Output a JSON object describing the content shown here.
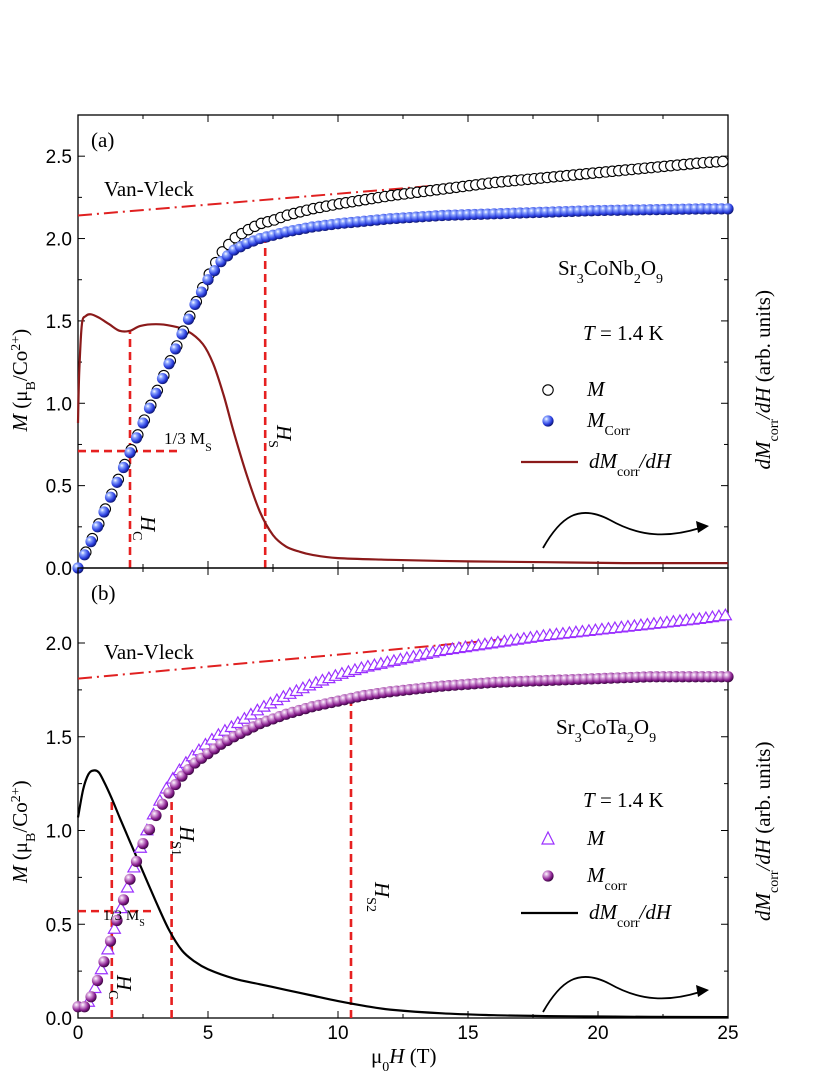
{
  "chart_data": [
    {
      "panel_label": "(a)",
      "type": "scatter",
      "compound": [
        "Sr",
        "3",
        "CoNb",
        "2",
        "O",
        "9"
      ],
      "temperature": [
        "T",
        " = 1.4 K"
      ],
      "ylabel_left": [
        "M",
        " (μ",
        "B",
        "/Co",
        "2+",
        ")"
      ],
      "ylabel_right": [
        "dM",
        "corr",
        "/dH",
        " (arb. units)"
      ],
      "xlim": [
        0,
        25
      ],
      "ylim": [
        0,
        2.75
      ],
      "yticks": [
        0.0,
        0.5,
        1.0,
        1.5,
        2.0,
        2.5
      ],
      "yticklabels": [
        "0.0",
        "0.5",
        "1.0",
        "1.5",
        "2.0",
        "2.5"
      ],
      "legend": [
        {
          "label": [
            "M",
            ""
          ],
          "marker": "open-circle",
          "color": "#000000"
        },
        {
          "label": [
            "M",
            "Corr"
          ],
          "marker": "blue-sphere",
          "color": "#2b3fe0"
        },
        {
          "label": [
            "dM",
            "corr",
            "/dH"
          ],
          "marker": "line",
          "color": "#8b1a1a"
        }
      ],
      "annotations": {
        "van_vleck": "Van-Vleck",
        "one_third": "1/3 M",
        "one_third_sub": "S",
        "hc": "H",
        "hc_sub": "C",
        "hs": "H",
        "hs_sub": "S"
      },
      "van_vleck_line": {
        "x": [
          0,
          25
        ],
        "y": [
          2.14,
          2.47
        ],
        "color": "#e02020"
      },
      "critical_fields": {
        "Hc": 2.0,
        "Hs": 7.2,
        "one_third_Ms": 0.71
      },
      "series": [
        {
          "name": "M",
          "x": [
            0,
            0.5,
            1,
            1.5,
            2,
            2.5,
            3,
            3.5,
            4,
            4.5,
            5,
            5.5,
            6,
            6.5,
            7,
            7.5,
            8,
            9,
            10,
            12,
            14,
            16,
            18,
            20,
            22,
            24,
            25
          ],
          "y": [
            0.0,
            0.16,
            0.34,
            0.52,
            0.7,
            0.88,
            1.06,
            1.24,
            1.42,
            1.6,
            1.77,
            1.91,
            2.0,
            2.05,
            2.09,
            2.11,
            2.14,
            2.18,
            2.21,
            2.26,
            2.3,
            2.34,
            2.37,
            2.4,
            2.43,
            2.46,
            2.47
          ]
        },
        {
          "name": "M_Corr",
          "x": [
            0,
            0.5,
            1,
            1.5,
            2,
            2.5,
            3,
            3.5,
            4,
            4.5,
            5,
            5.5,
            6,
            6.5,
            7,
            7.5,
            8,
            9,
            10,
            12,
            14,
            16,
            18,
            20,
            22,
            24,
            25
          ],
          "y": [
            0.0,
            0.16,
            0.34,
            0.52,
            0.7,
            0.88,
            1.06,
            1.24,
            1.42,
            1.6,
            1.75,
            1.86,
            1.93,
            1.97,
            2.0,
            2.02,
            2.04,
            2.07,
            2.09,
            2.12,
            2.14,
            2.15,
            2.16,
            2.17,
            2.175,
            2.18,
            2.18
          ]
        },
        {
          "name": "dM_corr/dH",
          "x": [
            0,
            0.05,
            0.15,
            0.3,
            0.5,
            0.8,
            1.2,
            1.6,
            2.0,
            2.4,
            3.0,
            3.6,
            4.2,
            4.8,
            5.2,
            5.6,
            6.0,
            6.5,
            7.0,
            7.5,
            8.0,
            8.5,
            9,
            10,
            12,
            15,
            18,
            21,
            25
          ],
          "y": [
            0.88,
            1.2,
            1.48,
            1.53,
            1.54,
            1.52,
            1.48,
            1.44,
            1.44,
            1.47,
            1.48,
            1.47,
            1.44,
            1.36,
            1.24,
            1.05,
            0.82,
            0.56,
            0.34,
            0.2,
            0.13,
            0.1,
            0.08,
            0.06,
            0.05,
            0.04,
            0.035,
            0.03,
            0.03
          ]
        }
      ]
    },
    {
      "panel_label": "(b)",
      "type": "scatter",
      "compound": [
        "Sr",
        "3",
        "CoTa",
        "2",
        "O",
        "9"
      ],
      "temperature": [
        "T",
        " = 1.4 K"
      ],
      "ylabel_left": [
        "M",
        " (μ",
        "B",
        "/Co",
        "2+",
        ")"
      ],
      "ylabel_right": [
        "dM",
        "corr",
        "/dH",
        " (arb. units)"
      ],
      "xlabel": [
        "μ",
        "0",
        "H",
        " (T)"
      ],
      "xlim": [
        0,
        25
      ],
      "xticks": [
        0,
        5,
        10,
        15,
        20,
        25
      ],
      "xticklabels": [
        "0",
        "5",
        "10",
        "15",
        "20",
        "25"
      ],
      "ylim": [
        0,
        2.4
      ],
      "yticks": [
        0.0,
        0.5,
        1.0,
        1.5,
        2.0
      ],
      "yticklabels": [
        "0.0",
        "0.5",
        "1.0",
        "1.5",
        "2.0"
      ],
      "legend": [
        {
          "label": [
            "M",
            ""
          ],
          "marker": "open-triangle",
          "color": "#9b30ff"
        },
        {
          "label": [
            "M",
            "corr"
          ],
          "marker": "purple-sphere",
          "color": "#8a2090"
        },
        {
          "label": [
            "dM",
            "corr",
            "/dH"
          ],
          "marker": "line",
          "color": "#000000"
        }
      ],
      "annotations": {
        "van_vleck": "Van-Vleck",
        "one_third": "1/3 M",
        "one_third_sub": "S",
        "hc": "H",
        "hc_sub": "C",
        "hs1": "H",
        "hs1_sub": "S1",
        "hs2": "H",
        "hs2_sub": "S2"
      },
      "van_vleck_line": {
        "x": [
          0,
          25
        ],
        "y": [
          1.81,
          2.13
        ],
        "color": "#e02020"
      },
      "critical_fields": {
        "Hc": 1.3,
        "Hs1": 3.6,
        "Hs2": 10.5,
        "one_third_Ms": 0.57
      },
      "series": [
        {
          "name": "M",
          "x": [
            0.3,
            0.6,
            1,
            1.5,
            2,
            2.5,
            3,
            3.5,
            4,
            4.5,
            5,
            5.5,
            6,
            7,
            8,
            9,
            10,
            11,
            12,
            14,
            16,
            18,
            20,
            22,
            24,
            25
          ],
          "y": [
            0.06,
            0.14,
            0.3,
            0.52,
            0.74,
            0.95,
            1.12,
            1.25,
            1.34,
            1.41,
            1.47,
            1.52,
            1.56,
            1.65,
            1.72,
            1.78,
            1.83,
            1.87,
            1.9,
            1.96,
            2.0,
            2.04,
            2.07,
            2.1,
            2.13,
            2.15
          ]
        },
        {
          "name": "M_corr",
          "x": [
            0.3,
            0.6,
            1,
            1.5,
            2,
            2.5,
            3,
            3.5,
            4,
            4.5,
            5,
            5.5,
            6,
            7,
            8,
            9,
            10,
            11,
            12,
            14,
            16,
            18,
            20,
            22,
            24,
            25
          ],
          "y": [
            0.06,
            0.14,
            0.3,
            0.52,
            0.74,
            0.93,
            1.08,
            1.2,
            1.29,
            1.36,
            1.41,
            1.46,
            1.5,
            1.57,
            1.62,
            1.66,
            1.69,
            1.72,
            1.74,
            1.77,
            1.79,
            1.8,
            1.81,
            1.82,
            1.82,
            1.82
          ]
        },
        {
          "name": "dM_corr/dH",
          "x": [
            0,
            0.2,
            0.4,
            0.6,
            0.8,
            1.0,
            1.3,
            1.6,
            2.0,
            2.5,
            3.0,
            3.5,
            4.0,
            4.5,
            5.0,
            6,
            7,
            8,
            9,
            10,
            11,
            12,
            14,
            16,
            18,
            20,
            22,
            25
          ],
          "y": [
            1.07,
            1.22,
            1.3,
            1.32,
            1.31,
            1.26,
            1.17,
            1.07,
            0.94,
            0.78,
            0.62,
            0.47,
            0.36,
            0.3,
            0.26,
            0.21,
            0.18,
            0.15,
            0.12,
            0.09,
            0.065,
            0.045,
            0.025,
            0.015,
            0.01,
            0.008,
            0.006,
            0.005
          ]
        }
      ]
    }
  ]
}
